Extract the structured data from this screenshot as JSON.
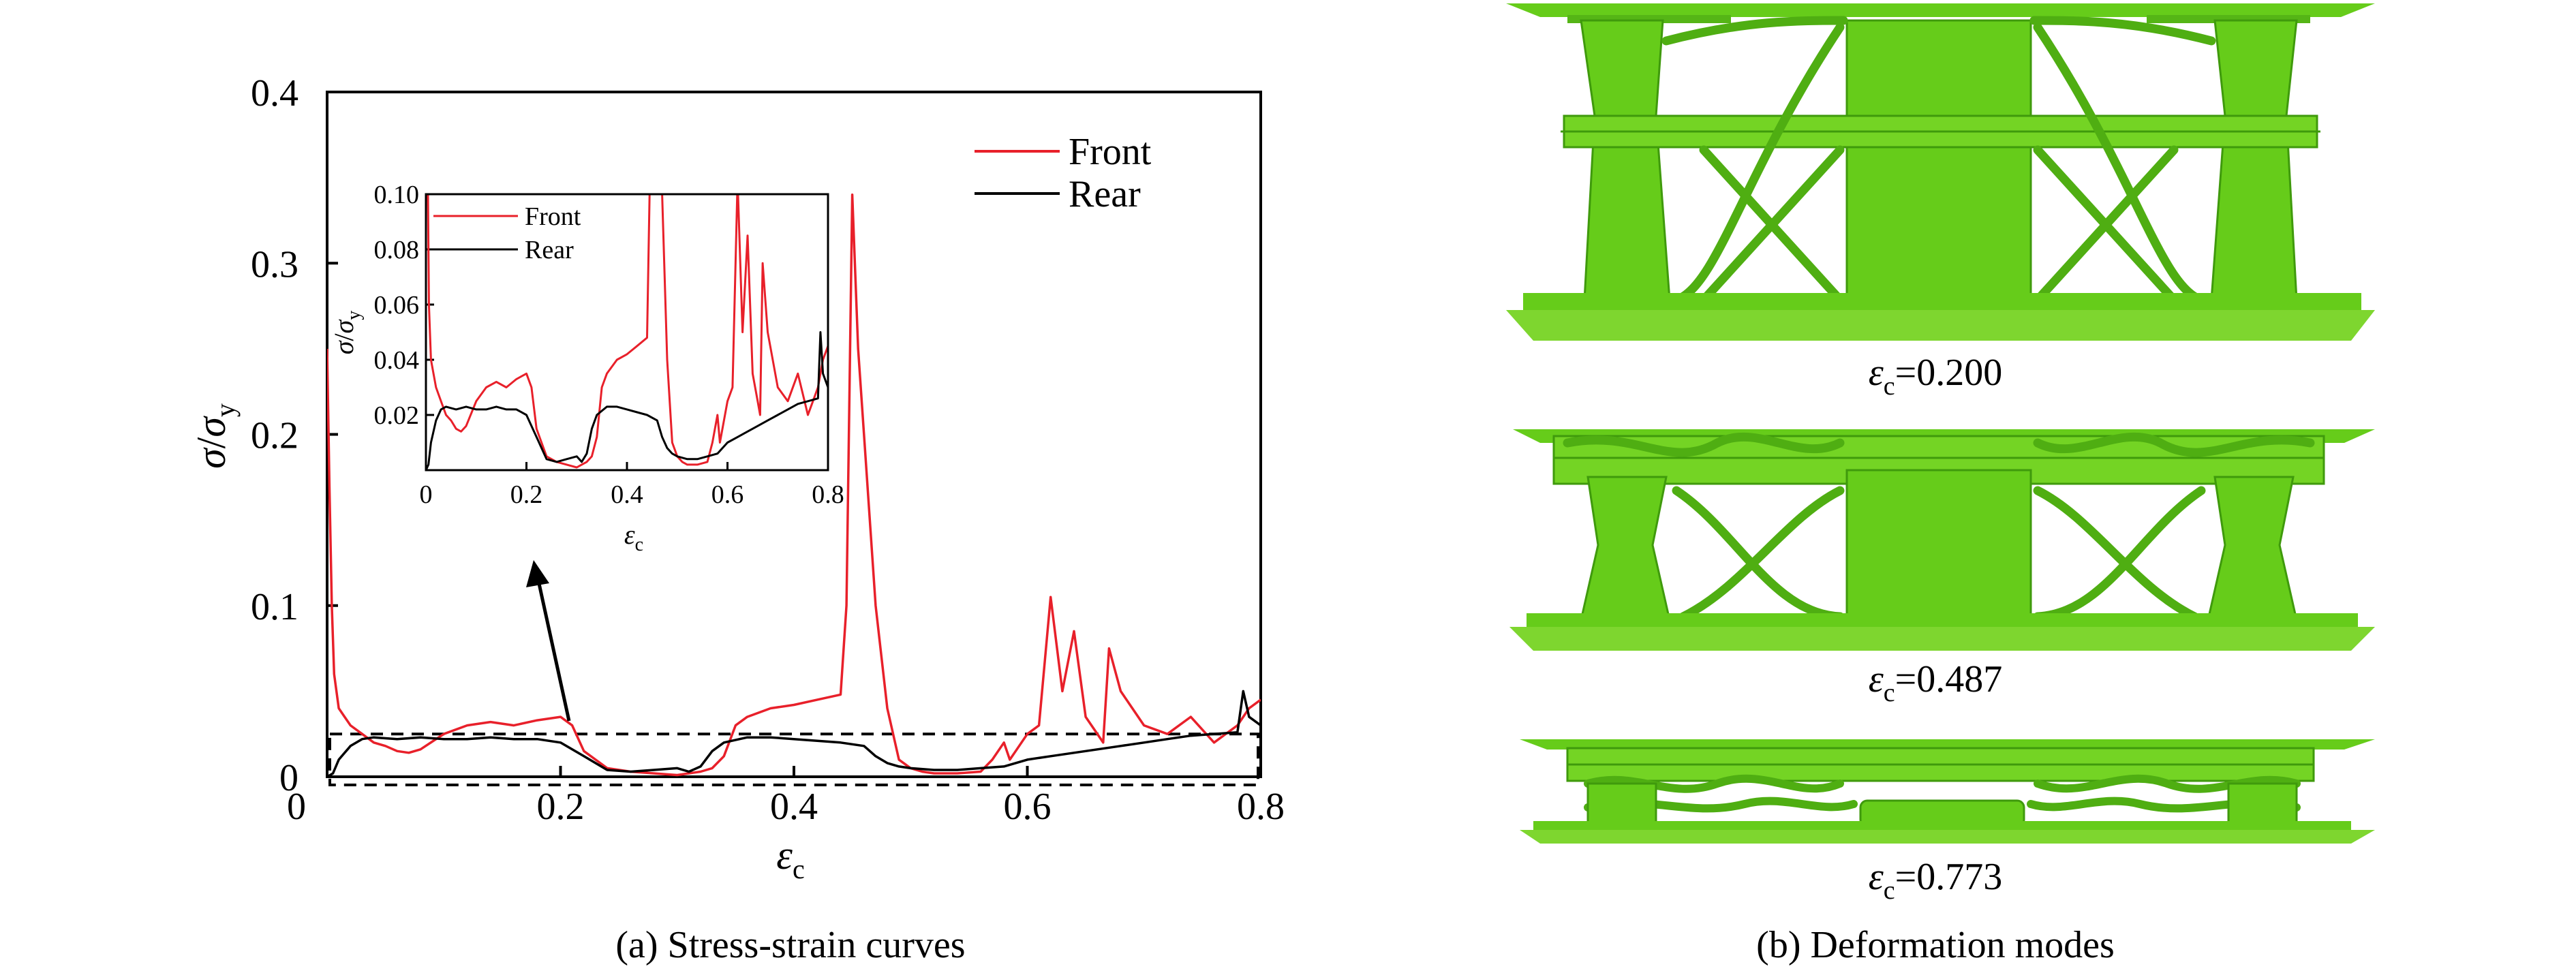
{
  "panels": {
    "a": {
      "caption": "(a) Stress-strain curves",
      "main_chart": {
        "type": "line",
        "xlabel": "εc",
        "ylabel": "σ/σy",
        "xlim": [
          0,
          0.8
        ],
        "ylim": [
          0,
          0.4
        ],
        "x_ticks": [
          "0",
          "0.2",
          "0.4",
          "0.6",
          "0.8"
        ],
        "y_ticks": [
          "0",
          "0.1",
          "0.2",
          "0.3",
          "0.4"
        ],
        "legend": {
          "position": "top-right",
          "entries": [
            "Front",
            "Rear"
          ]
        },
        "series": [
          {
            "name": "Front",
            "color": "#e8202a",
            "x": [
              0,
              0.002,
              0.004,
              0.006,
              0.01,
              0.015,
              0.02,
              0.03,
              0.04,
              0.05,
              0.06,
              0.07,
              0.08,
              0.1,
              0.12,
              0.14,
              0.16,
              0.18,
              0.2,
              0.21,
              0.22,
              0.24,
              0.26,
              0.28,
              0.3,
              0.31,
              0.32,
              0.33,
              0.34,
              0.35,
              0.36,
              0.38,
              0.4,
              0.42,
              0.44,
              0.445,
              0.45,
              0.455,
              0.46,
              0.47,
              0.48,
              0.49,
              0.5,
              0.51,
              0.52,
              0.54,
              0.56,
              0.57,
              0.58,
              0.585,
              0.59,
              0.6,
              0.61,
              0.62,
              0.63,
              0.64,
              0.65,
              0.66,
              0.665,
              0.67,
              0.68,
              0.69,
              0.7,
              0.72,
              0.74,
              0.76,
              0.77,
              0.78,
              0.79,
              0.8
            ],
            "y": [
              0.25,
              0.17,
              0.1,
              0.06,
              0.04,
              0.035,
              0.03,
              0.025,
              0.02,
              0.018,
              0.015,
              0.014,
              0.016,
              0.025,
              0.03,
              0.032,
              0.03,
              0.033,
              0.035,
              0.03,
              0.015,
              0.005,
              0.003,
              0.002,
              0.001,
              0.002,
              0.003,
              0.005,
              0.012,
              0.03,
              0.035,
              0.04,
              0.042,
              0.045,
              0.048,
              0.1,
              0.34,
              0.25,
              0.2,
              0.1,
              0.04,
              0.01,
              0.005,
              0.003,
              0.002,
              0.002,
              0.003,
              0.01,
              0.02,
              0.01,
              0.015,
              0.025,
              0.03,
              0.105,
              0.05,
              0.085,
              0.035,
              0.025,
              0.02,
              0.075,
              0.05,
              0.04,
              0.03,
              0.025,
              0.035,
              0.02,
              0.025,
              0.03,
              0.04,
              0.045
            ]
          },
          {
            "name": "Rear",
            "color": "#000000",
            "x": [
              0,
              0.005,
              0.01,
              0.02,
              0.03,
              0.04,
              0.06,
              0.08,
              0.1,
              0.12,
              0.14,
              0.16,
              0.18,
              0.2,
              0.22,
              0.24,
              0.26,
              0.28,
              0.3,
              0.31,
              0.32,
              0.33,
              0.34,
              0.36,
              0.38,
              0.4,
              0.42,
              0.44,
              0.46,
              0.47,
              0.48,
              0.49,
              0.5,
              0.52,
              0.54,
              0.56,
              0.58,
              0.6,
              0.62,
              0.64,
              0.66,
              0.68,
              0.7,
              0.72,
              0.74,
              0.76,
              0.78,
              0.785,
              0.79,
              0.8
            ],
            "y": [
              0,
              0.002,
              0.01,
              0.018,
              0.022,
              0.023,
              0.022,
              0.023,
              0.022,
              0.022,
              0.023,
              0.022,
              0.022,
              0.02,
              0.012,
              0.004,
              0.003,
              0.004,
              0.005,
              0.003,
              0.006,
              0.015,
              0.02,
              0.023,
              0.023,
              0.022,
              0.021,
              0.02,
              0.018,
              0.012,
              0.008,
              0.006,
              0.005,
              0.004,
              0.004,
              0.005,
              0.006,
              0.01,
              0.012,
              0.014,
              0.016,
              0.018,
              0.02,
              0.022,
              0.024,
              0.025,
              0.026,
              0.05,
              0.035,
              0.03
            ]
          }
        ],
        "highlight_box": {
          "x": [
            0,
            0.8
          ],
          "y": [
            -0.005,
            0.025
          ]
        }
      },
      "inset_chart": {
        "type": "line",
        "xlabel": "εc",
        "ylabel": "σ/σy",
        "xlim": [
          0,
          0.8
        ],
        "ylim": [
          0,
          0.1
        ],
        "x_ticks": [
          "0",
          "0.2",
          "0.4",
          "0.6",
          "0.8"
        ],
        "y_ticks": [
          "0.02",
          "0.04",
          "0.06",
          "0.08",
          "0.10"
        ],
        "legend": {
          "position": "top-left",
          "entries": [
            "Front",
            "Rear"
          ]
        }
      }
    },
    "b": {
      "caption": "(b) Deformation modes",
      "modes": [
        {
          "label_symbol": "ε",
          "label_sub": "c",
          "label_value": "=0.200"
        },
        {
          "label_symbol": "ε",
          "label_sub": "c",
          "label_value": "=0.487"
        },
        {
          "label_symbol": "ε",
          "label_sub": "c",
          "label_value": "=0.773"
        }
      ]
    }
  },
  "colors": {
    "lattice_green": "#66cc1a",
    "lattice_dark": "#3f9a0c",
    "front": "#e8202a",
    "rear": "#000000"
  }
}
